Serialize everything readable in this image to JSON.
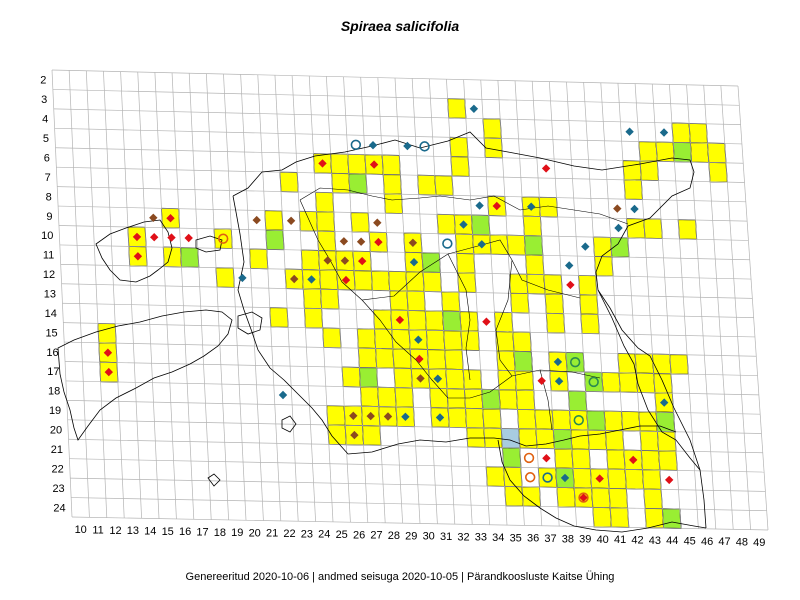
{
  "title": "Spiraea salicifolia",
  "footer": "Genereeritud 2020-10-06  |  andmed seisuga 2020-10-05  |  Pärandkoosluste Kaitse Ühing",
  "colors": {
    "grid": "#b4b4b4",
    "cell_yellow": "#ffff00",
    "cell_green": "#99ee33",
    "cell_blue": "#a8cce0",
    "marker_red": "#e01018",
    "marker_brown": "#8b4a20",
    "marker_blue": "#1a6a8c",
    "marker_orange": "#e06010",
    "marker_green": "#2a8a50",
    "outline": "#000000"
  },
  "chart_data": {
    "type": "grid-occurrence-map",
    "x_ticks": [
      "10",
      "11",
      "12",
      "13",
      "14",
      "15",
      "16",
      "17",
      "18",
      "19",
      "20",
      "21",
      "22",
      "23",
      "24",
      "25",
      "26",
      "27",
      "28",
      "29",
      "30",
      "31",
      "32",
      "33",
      "34",
      "35",
      "36",
      "37",
      "38",
      "39",
      "40",
      "41",
      "42",
      "43",
      "44",
      "45",
      "46",
      "47",
      "48",
      "49"
    ],
    "y_ticks": [
      "2",
      "3",
      "4",
      "5",
      "6",
      "7",
      "8",
      "9",
      "10",
      "11",
      "12",
      "13",
      "14",
      "15",
      "16",
      "17",
      "18",
      "19",
      "20",
      "21",
      "22",
      "23",
      "24"
    ],
    "cells_yellow": [
      [
        33,
        3
      ],
      [
        35,
        4
      ],
      [
        46,
        4
      ],
      [
        47,
        4
      ],
      [
        33,
        5
      ],
      [
        35,
        5
      ],
      [
        44,
        5
      ],
      [
        45,
        5
      ],
      [
        47,
        5
      ],
      [
        48,
        5
      ],
      [
        25,
        6
      ],
      [
        26,
        6
      ],
      [
        27,
        6
      ],
      [
        28,
        6
      ],
      [
        29,
        6
      ],
      [
        33,
        6
      ],
      [
        43,
        6
      ],
      [
        44,
        6
      ],
      [
        48,
        6
      ],
      [
        23,
        7
      ],
      [
        26,
        7
      ],
      [
        29,
        7
      ],
      [
        31,
        7
      ],
      [
        32,
        7
      ],
      [
        43,
        7
      ],
      [
        25,
        8
      ],
      [
        29,
        8
      ],
      [
        35,
        8
      ],
      [
        37,
        8
      ],
      [
        38,
        8
      ],
      [
        16,
        9
      ],
      [
        22,
        9
      ],
      [
        24,
        9
      ],
      [
        25,
        9
      ],
      [
        27,
        9
      ],
      [
        32,
        9
      ],
      [
        33,
        9
      ],
      [
        37,
        9
      ],
      [
        43,
        9
      ],
      [
        44,
        9
      ],
      [
        46,
        9
      ],
      [
        14,
        10
      ],
      [
        19,
        10
      ],
      [
        25,
        10
      ],
      [
        28,
        10
      ],
      [
        30,
        10
      ],
      [
        33,
        10
      ],
      [
        34,
        10
      ],
      [
        35,
        10
      ],
      [
        36,
        10
      ],
      [
        41,
        10
      ],
      [
        14,
        11
      ],
      [
        16,
        11
      ],
      [
        21,
        11
      ],
      [
        24,
        11
      ],
      [
        25,
        11
      ],
      [
        26,
        11
      ],
      [
        27,
        11
      ],
      [
        30,
        11
      ],
      [
        33,
        11
      ],
      [
        37,
        11
      ],
      [
        41,
        11
      ],
      [
        19,
        12
      ],
      [
        23,
        12
      ],
      [
        24,
        12
      ],
      [
        25,
        12
      ],
      [
        26,
        12
      ],
      [
        27,
        12
      ],
      [
        28,
        12
      ],
      [
        29,
        12
      ],
      [
        30,
        12
      ],
      [
        31,
        12
      ],
      [
        33,
        12
      ],
      [
        36,
        12
      ],
      [
        37,
        12
      ],
      [
        38,
        12
      ],
      [
        40,
        12
      ],
      [
        24,
        13
      ],
      [
        25,
        13
      ],
      [
        29,
        13
      ],
      [
        30,
        13
      ],
      [
        32,
        13
      ],
      [
        36,
        13
      ],
      [
        38,
        13
      ],
      [
        40,
        13
      ],
      [
        22,
        14
      ],
      [
        24,
        14
      ],
      [
        28,
        14
      ],
      [
        29,
        14
      ],
      [
        30,
        14
      ],
      [
        31,
        14
      ],
      [
        32,
        14
      ],
      [
        33,
        14
      ],
      [
        35,
        14
      ],
      [
        38,
        14
      ],
      [
        40,
        14
      ],
      [
        12,
        15
      ],
      [
        25,
        15
      ],
      [
        27,
        15
      ],
      [
        28,
        15
      ],
      [
        29,
        15
      ],
      [
        30,
        15
      ],
      [
        31,
        15
      ],
      [
        32,
        15
      ],
      [
        33,
        15
      ],
      [
        35,
        15
      ],
      [
        36,
        15
      ],
      [
        12,
        16
      ],
      [
        27,
        16
      ],
      [
        28,
        16
      ],
      [
        29,
        16
      ],
      [
        30,
        16
      ],
      [
        31,
        16
      ],
      [
        32,
        16
      ],
      [
        35,
        16
      ],
      [
        36,
        16
      ],
      [
        38,
        16
      ],
      [
        42,
        16
      ],
      [
        43,
        16
      ],
      [
        44,
        16
      ],
      [
        45,
        16
      ],
      [
        12,
        17
      ],
      [
        26,
        17
      ],
      [
        29,
        17
      ],
      [
        30,
        17
      ],
      [
        31,
        17
      ],
      [
        32,
        17
      ],
      [
        33,
        17
      ],
      [
        35,
        17
      ],
      [
        36,
        17
      ],
      [
        38,
        17
      ],
      [
        41,
        17
      ],
      [
        42,
        17
      ],
      [
        43,
        17
      ],
      [
        44,
        17
      ],
      [
        27,
        18
      ],
      [
        28,
        18
      ],
      [
        29,
        18
      ],
      [
        31,
        18
      ],
      [
        32,
        18
      ],
      [
        33,
        18
      ],
      [
        35,
        18
      ],
      [
        36,
        18
      ],
      [
        44,
        18
      ],
      [
        25,
        19
      ],
      [
        26,
        19
      ],
      [
        27,
        19
      ],
      [
        28,
        19
      ],
      [
        29,
        19
      ],
      [
        31,
        19
      ],
      [
        32,
        19
      ],
      [
        33,
        19
      ],
      [
        34,
        19
      ],
      [
        36,
        19
      ],
      [
        37,
        19
      ],
      [
        38,
        19
      ],
      [
        39,
        19
      ],
      [
        41,
        19
      ],
      [
        42,
        19
      ],
      [
        43,
        19
      ],
      [
        44,
        19
      ],
      [
        25,
        20
      ],
      [
        26,
        20
      ],
      [
        27,
        20
      ],
      [
        33,
        20
      ],
      [
        34,
        20
      ],
      [
        36,
        20
      ],
      [
        37,
        20
      ],
      [
        39,
        20
      ],
      [
        40,
        20
      ],
      [
        41,
        20
      ],
      [
        43,
        20
      ],
      [
        44,
        20
      ],
      [
        38,
        21
      ],
      [
        39,
        21
      ],
      [
        41,
        21
      ],
      [
        42,
        21
      ],
      [
        43,
        21
      ],
      [
        44,
        21
      ],
      [
        34,
        22
      ],
      [
        35,
        22
      ],
      [
        37,
        22
      ],
      [
        38,
        22
      ],
      [
        39,
        22
      ],
      [
        40,
        22
      ],
      [
        41,
        22
      ],
      [
        42,
        22
      ],
      [
        43,
        22
      ],
      [
        35,
        23
      ],
      [
        36,
        23
      ],
      [
        38,
        23
      ],
      [
        39,
        23
      ],
      [
        40,
        23
      ],
      [
        41,
        23
      ],
      [
        43,
        23
      ],
      [
        40,
        24
      ],
      [
        41,
        24
      ],
      [
        43,
        24
      ],
      [
        44,
        24
      ]
    ],
    "cells_green": [
      [
        46,
        5
      ],
      [
        27,
        7
      ],
      [
        34,
        9
      ],
      [
        22,
        10
      ],
      [
        37,
        10
      ],
      [
        42,
        10
      ],
      [
        17,
        11
      ],
      [
        31,
        11
      ],
      [
        32,
        14
      ],
      [
        36,
        16
      ],
      [
        39,
        16
      ],
      [
        27,
        17
      ],
      [
        40,
        17
      ],
      [
        34,
        18
      ],
      [
        39,
        18
      ],
      [
        40,
        19
      ],
      [
        44,
        19
      ],
      [
        38,
        20
      ],
      [
        35,
        21
      ],
      [
        38,
        22
      ],
      [
        44,
        24
      ]
    ],
    "cells_blue": [
      [
        35,
        20
      ]
    ],
    "markers_red_diamond": [
      [
        25,
        6
      ],
      [
        28,
        6
      ],
      [
        38,
        6
      ],
      [
        35,
        8
      ],
      [
        16,
        9
      ],
      [
        14,
        10
      ],
      [
        15,
        10
      ],
      [
        16,
        10
      ],
      [
        17,
        10
      ],
      [
        28,
        10
      ],
      [
        14,
        11
      ],
      [
        27,
        11
      ],
      [
        26,
        12
      ],
      [
        39,
        12
      ],
      [
        34,
        14
      ],
      [
        29,
        14
      ],
      [
        12,
        16
      ],
      [
        30,
        16
      ],
      [
        12,
        17
      ],
      [
        37,
        17
      ],
      [
        37,
        21
      ],
      [
        42,
        21
      ],
      [
        40,
        22
      ],
      [
        44,
        22
      ],
      [
        39,
        23
      ]
    ],
    "markers_brown_diamond": [
      [
        15,
        9
      ],
      [
        21,
        9
      ],
      [
        23,
        9
      ],
      [
        28,
        9
      ],
      [
        42,
        8
      ],
      [
        26,
        10
      ],
      [
        27,
        10
      ],
      [
        30,
        10
      ],
      [
        25,
        11
      ],
      [
        26,
        11
      ],
      [
        23,
        12
      ],
      [
        30,
        17
      ],
      [
        31,
        17
      ],
      [
        26,
        19
      ],
      [
        27,
        19
      ],
      [
        28,
        19
      ],
      [
        26,
        20
      ]
    ],
    "markers_blue_diamond": [
      [
        34,
        3
      ],
      [
        28,
        5
      ],
      [
        30,
        5
      ],
      [
        43,
        4
      ],
      [
        45,
        4
      ],
      [
        34,
        8
      ],
      [
        37,
        8
      ],
      [
        43,
        8
      ],
      [
        33,
        9
      ],
      [
        42,
        9
      ],
      [
        34,
        10
      ],
      [
        40,
        10
      ],
      [
        30,
        11
      ],
      [
        20,
        12
      ],
      [
        24,
        12
      ],
      [
        39,
        11
      ],
      [
        30,
        15
      ],
      [
        38,
        16
      ],
      [
        31,
        17
      ],
      [
        38,
        17
      ],
      [
        22,
        18
      ],
      [
        44,
        18
      ],
      [
        29,
        19
      ],
      [
        31,
        19
      ],
      [
        38,
        22
      ]
    ],
    "markers_blue_circle": [
      [
        27,
        5
      ],
      [
        31,
        5
      ],
      [
        32,
        10
      ],
      [
        37,
        22
      ]
    ],
    "markers_orange_circle": [
      [
        19,
        10
      ],
      [
        36,
        21
      ],
      [
        36,
        22
      ],
      [
        39,
        23
      ]
    ],
    "markers_green_circle": [
      [
        39,
        16
      ],
      [
        40,
        17
      ],
      [
        39,
        19
      ]
    ]
  }
}
